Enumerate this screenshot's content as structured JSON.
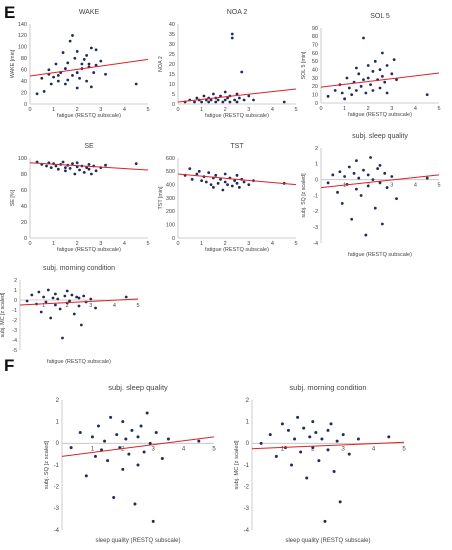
{
  "panel_labels": {
    "e": "E",
    "f": "F"
  },
  "colors": {
    "point": "#1f2d5c",
    "trend": "#e02020",
    "axis": "#bfbfbf",
    "text": "#555555"
  },
  "chart_data": [
    {
      "type": "scatter",
      "title": "WAKE",
      "xlabel": "fatigue (RESTQ subscale)",
      "ylabel": "WAKE [min]",
      "xlim": [
        0,
        5
      ],
      "ylim": [
        0,
        140
      ],
      "xticks": [
        "0",
        "1",
        "2",
        "3",
        "4",
        "5"
      ],
      "yticks": [
        "0",
        "20",
        "40",
        "60",
        "80",
        "100",
        "120",
        "140"
      ],
      "points": [
        [
          0.3,
          18
        ],
        [
          0.5,
          45
        ],
        [
          0.6,
          22
        ],
        [
          0.8,
          52
        ],
        [
          0.8,
          60
        ],
        [
          0.9,
          35
        ],
        [
          1.0,
          47
        ],
        [
          1.1,
          70
        ],
        [
          1.2,
          40
        ],
        [
          1.2,
          50
        ],
        [
          1.3,
          55
        ],
        [
          1.4,
          90
        ],
        [
          1.5,
          35
        ],
        [
          1.5,
          62
        ],
        [
          1.6,
          42
        ],
        [
          1.6,
          72
        ],
        [
          1.7,
          110
        ],
        [
          1.8,
          50
        ],
        [
          1.8,
          120
        ],
        [
          1.9,
          80
        ],
        [
          2.0,
          28
        ],
        [
          2.0,
          55
        ],
        [
          2.0,
          92
        ],
        [
          2.1,
          45
        ],
        [
          2.2,
          62
        ],
        [
          2.2,
          70
        ],
        [
          2.3,
          78
        ],
        [
          2.4,
          40
        ],
        [
          2.4,
          85
        ],
        [
          2.5,
          70
        ],
        [
          2.5,
          65
        ],
        [
          2.6,
          30
        ],
        [
          2.6,
          98
        ],
        [
          2.7,
          55
        ],
        [
          2.8,
          68
        ],
        [
          2.8,
          95
        ],
        [
          3.0,
          75
        ],
        [
          3.2,
          52
        ],
        [
          4.5,
          35
        ]
      ],
      "trend": [
        [
          0,
          49
        ],
        [
          5,
          78
        ]
      ]
    },
    {
      "type": "scatter",
      "title": "NOA 2",
      "xlabel": "fatigue (RESTQ subscale)",
      "ylabel": "NOA 2",
      "xlim": [
        0,
        5
      ],
      "ylim": [
        0,
        40
      ],
      "xticks": [
        "0",
        "1",
        "2",
        "3",
        "4",
        "5"
      ],
      "yticks": [
        "0",
        "5",
        "10",
        "15",
        "20",
        "25",
        "30",
        "35",
        "40"
      ],
      "points": [
        [
          0.3,
          1
        ],
        [
          0.5,
          2
        ],
        [
          0.7,
          1
        ],
        [
          0.8,
          3
        ],
        [
          0.9,
          2
        ],
        [
          1.0,
          1
        ],
        [
          1.1,
          4
        ],
        [
          1.2,
          2
        ],
        [
          1.3,
          1
        ],
        [
          1.3,
          3
        ],
        [
          1.4,
          2
        ],
        [
          1.5,
          5
        ],
        [
          1.6,
          1
        ],
        [
          1.6,
          3
        ],
        [
          1.7,
          2
        ],
        [
          1.8,
          4
        ],
        [
          1.9,
          1
        ],
        [
          2.0,
          2
        ],
        [
          2.0,
          6
        ],
        [
          2.1,
          3
        ],
        [
          2.2,
          1
        ],
        [
          2.2,
          4
        ],
        [
          2.3,
          33
        ],
        [
          2.3,
          35
        ],
        [
          2.4,
          2
        ],
        [
          2.5,
          5
        ],
        [
          2.5,
          1
        ],
        [
          2.6,
          3
        ],
        [
          2.7,
          16
        ],
        [
          2.8,
          2
        ],
        [
          3.0,
          4
        ],
        [
          3.2,
          2
        ],
        [
          4.5,
          1
        ]
      ],
      "trend": [
        [
          0,
          1
        ],
        [
          5,
          7.5
        ]
      ]
    },
    {
      "type": "scatter",
      "title": "SOL 5",
      "xlabel": "fatigue (RESTQ subscale)",
      "ylabel": "SOL 5 [min]",
      "xlim": [
        0,
        5
      ],
      "ylim": [
        0,
        90
      ],
      "xticks": [
        "0",
        "1",
        "2",
        "3",
        "4",
        "5"
      ],
      "yticks": [
        "0",
        "10",
        "20",
        "30",
        "40",
        "50",
        "60",
        "70",
        "80",
        "90"
      ],
      "points": [
        [
          0.3,
          8
        ],
        [
          0.6,
          15
        ],
        [
          0.8,
          22
        ],
        [
          0.9,
          12
        ],
        [
          1.0,
          5
        ],
        [
          1.1,
          30
        ],
        [
          1.2,
          18
        ],
        [
          1.3,
          10
        ],
        [
          1.4,
          25
        ],
        [
          1.5,
          42
        ],
        [
          1.5,
          15
        ],
        [
          1.6,
          35
        ],
        [
          1.7,
          20
        ],
        [
          1.8,
          78
        ],
        [
          1.8,
          28
        ],
        [
          1.9,
          12
        ],
        [
          2.0,
          45
        ],
        [
          2.0,
          30
        ],
        [
          2.1,
          22
        ],
        [
          2.2,
          38
        ],
        [
          2.2,
          15
        ],
        [
          2.3,
          50
        ],
        [
          2.4,
          28
        ],
        [
          2.5,
          40
        ],
        [
          2.5,
          18
        ],
        [
          2.6,
          60
        ],
        [
          2.6,
          32
        ],
        [
          2.7,
          25
        ],
        [
          2.8,
          45
        ],
        [
          2.8,
          12
        ],
        [
          3.0,
          35
        ],
        [
          3.1,
          52
        ],
        [
          3.2,
          28
        ],
        [
          4.5,
          10
        ]
      ],
      "trend": [
        [
          0,
          19
        ],
        [
          5,
          36
        ]
      ]
    },
    {
      "type": "scatter",
      "title": "SE",
      "xlabel": "fatigue (RESTQ subscale)",
      "ylabel": "SE [%]",
      "xlim": [
        0,
        5
      ],
      "ylim": [
        0,
        100
      ],
      "xticks": [
        "0",
        "1",
        "2",
        "3",
        "4",
        "5"
      ],
      "yticks": [
        "0",
        "20",
        "40",
        "60",
        "80",
        "100"
      ],
      "points": [
        [
          0.3,
          95
        ],
        [
          0.5,
          92
        ],
        [
          0.7,
          90
        ],
        [
          0.8,
          94
        ],
        [
          0.9,
          88
        ],
        [
          1.0,
          93
        ],
        [
          1.1,
          90
        ],
        [
          1.2,
          86
        ],
        [
          1.3,
          92
        ],
        [
          1.4,
          95
        ],
        [
          1.5,
          88
        ],
        [
          1.5,
          84
        ],
        [
          1.6,
          91
        ],
        [
          1.7,
          87
        ],
        [
          1.8,
          93
        ],
        [
          1.9,
          80
        ],
        [
          2.0,
          89
        ],
        [
          2.0,
          94
        ],
        [
          2.1,
          85
        ],
        [
          2.2,
          90
        ],
        [
          2.3,
          82
        ],
        [
          2.4,
          88
        ],
        [
          2.5,
          92
        ],
        [
          2.5,
          86
        ],
        [
          2.6,
          80
        ],
        [
          2.7,
          90
        ],
        [
          2.8,
          84
        ],
        [
          3.0,
          88
        ],
        [
          3.2,
          91
        ],
        [
          4.5,
          93
        ]
      ],
      "trend": [
        [
          0,
          94
        ],
        [
          5,
          85
        ]
      ]
    },
    {
      "type": "scatter",
      "title": "TST",
      "xlabel": "fatigue (RESTQ subscale)",
      "ylabel": "TST [min]",
      "xlim": [
        0,
        5
      ],
      "ylim": [
        0,
        600
      ],
      "xticks": [
        "0",
        "1",
        "2",
        "3",
        "4",
        "5"
      ],
      "yticks": [
        "0",
        "100",
        "200",
        "300",
        "400",
        "500",
        "600"
      ],
      "points": [
        [
          0.3,
          470
        ],
        [
          0.5,
          520
        ],
        [
          0.6,
          440
        ],
        [
          0.8,
          480
        ],
        [
          0.9,
          500
        ],
        [
          1.0,
          430
        ],
        [
          1.1,
          460
        ],
        [
          1.2,
          420
        ],
        [
          1.3,
          490
        ],
        [
          1.4,
          400
        ],
        [
          1.5,
          450
        ],
        [
          1.5,
          380
        ],
        [
          1.6,
          470
        ],
        [
          1.7,
          410
        ],
        [
          1.8,
          440
        ],
        [
          1.9,
          360
        ],
        [
          2.0,
          480
        ],
        [
          2.0,
          420
        ],
        [
          2.1,
          400
        ],
        [
          2.2,
          450
        ],
        [
          2.3,
          390
        ],
        [
          2.4,
          430
        ],
        [
          2.5,
          470
        ],
        [
          2.5,
          410
        ],
        [
          2.6,
          380
        ],
        [
          2.7,
          440
        ],
        [
          2.8,
          420
        ],
        [
          3.0,
          400
        ],
        [
          3.2,
          430
        ],
        [
          4.5,
          410
        ]
      ],
      "trend": [
        [
          0,
          480
        ],
        [
          5,
          400
        ]
      ]
    },
    {
      "type": "scatter",
      "title": "subj. sleep quality",
      "xlabel": "fatigue (RESTQ subscale)",
      "ylabel": "subj. SQ [z scaled]",
      "xlim": [
        0,
        5
      ],
      "ylim": [
        -4,
        2
      ],
      "xticks": [
        "1",
        "2",
        "3",
        "4",
        "5"
      ],
      "yticks": [
        "-4",
        "-3",
        "-2",
        "-1",
        "0",
        "1",
        "2"
      ],
      "points": [
        [
          0.3,
          -0.2
        ],
        [
          0.5,
          0.3
        ],
        [
          0.7,
          -0.8
        ],
        [
          0.8,
          0.5
        ],
        [
          0.9,
          -1.5
        ],
        [
          1.0,
          0.2
        ],
        [
          1.1,
          -0.3
        ],
        [
          1.2,
          0.8
        ],
        [
          1.3,
          -2.5
        ],
        [
          1.4,
          0.4
        ],
        [
          1.5,
          -0.6
        ],
        [
          1.5,
          1.2
        ],
        [
          1.6,
          0.1
        ],
        [
          1.7,
          -1.0
        ],
        [
          1.8,
          0.6
        ],
        [
          1.9,
          -3.5
        ],
        [
          2.0,
          0.3
        ],
        [
          2.0,
          -0.4
        ],
        [
          2.1,
          1.4
        ],
        [
          2.2,
          0.0
        ],
        [
          2.3,
          -1.8
        ],
        [
          2.4,
          0.7
        ],
        [
          2.5,
          -0.2
        ],
        [
          2.5,
          0.9
        ],
        [
          2.6,
          -2.8
        ],
        [
          2.7,
          0.4
        ],
        [
          2.8,
          -0.5
        ],
        [
          3.0,
          0.2
        ],
        [
          3.2,
          -1.2
        ],
        [
          4.5,
          0.1
        ]
      ],
      "trend": [
        [
          0,
          -0.5
        ],
        [
          5,
          0.3
        ]
      ]
    },
    {
      "type": "scatter",
      "title": "subj. morning condition",
      "xlabel": "fatigue (RESTQ subscale)",
      "ylabel": "subj. MC [z scaled]",
      "xlim": [
        0,
        5
      ],
      "ylim": [
        -5,
        2
      ],
      "xticks": [
        "1",
        "2",
        "3",
        "4",
        "5"
      ],
      "yticks": [
        "-5",
        "-4",
        "-3",
        "-2",
        "-1",
        "0",
        "1",
        "2"
      ],
      "points": [
        [
          0.3,
          -0.1
        ],
        [
          0.5,
          0.5
        ],
        [
          0.7,
          -0.4
        ],
        [
          0.8,
          0.8
        ],
        [
          0.9,
          -1.2
        ],
        [
          1.0,
          0.3
        ],
        [
          1.1,
          -0.2
        ],
        [
          1.2,
          1.0
        ],
        [
          1.3,
          -1.8
        ],
        [
          1.4,
          0.2
        ],
        [
          1.5,
          -0.5
        ],
        [
          1.5,
          0.6
        ],
        [
          1.6,
          0.1
        ],
        [
          1.7,
          -0.9
        ],
        [
          1.8,
          -3.8
        ],
        [
          1.9,
          0.4
        ],
        [
          2.0,
          -0.3
        ],
        [
          2.0,
          0.9
        ],
        [
          2.1,
          -0.1
        ],
        [
          2.2,
          0.5
        ],
        [
          2.3,
          -1.4
        ],
        [
          2.4,
          0.3
        ],
        [
          2.5,
          -0.6
        ],
        [
          2.5,
          0.2
        ],
        [
          2.6,
          -2.5
        ],
        [
          2.7,
          0.4
        ],
        [
          2.8,
          -0.2
        ],
        [
          3.0,
          0.1
        ],
        [
          3.2,
          -0.8
        ],
        [
          4.5,
          0.3
        ]
      ],
      "trend": [
        [
          0,
          -0.5
        ],
        [
          5,
          0.1
        ]
      ]
    },
    {
      "type": "scatter",
      "title": "subj. sleep quality",
      "xlabel": "sleep quality (RESTQ subscale)",
      "ylabel": "subj. SQ [z scaled]",
      "xlim": [
        0,
        5
      ],
      "ylim": [
        -4,
        2
      ],
      "xticks": [
        "1",
        "2",
        "3",
        "4",
        "5"
      ],
      "yticks": [
        "-4",
        "-3",
        "-2",
        "-1",
        "0",
        "1",
        "2"
      ],
      "points": [
        [
          0.3,
          -0.2
        ],
        [
          0.6,
          0.5
        ],
        [
          0.8,
          -1.5
        ],
        [
          1.0,
          0.3
        ],
        [
          1.1,
          -0.6
        ],
        [
          1.2,
          0.8
        ],
        [
          1.3,
          -0.3
        ],
        [
          1.4,
          0.1
        ],
        [
          1.5,
          -0.8
        ],
        [
          1.6,
          1.2
        ],
        [
          1.7,
          -2.5
        ],
        [
          1.8,
          0.4
        ],
        [
          1.9,
          -0.2
        ],
        [
          2.0,
          1.0
        ],
        [
          2.0,
          -1.2
        ],
        [
          2.1,
          0.2
        ],
        [
          2.2,
          -0.5
        ],
        [
          2.3,
          0.6
        ],
        [
          2.4,
          -2.8
        ],
        [
          2.5,
          0.3
        ],
        [
          2.5,
          -1.0
        ],
        [
          2.6,
          0.8
        ],
        [
          2.7,
          -0.4
        ],
        [
          2.8,
          1.4
        ],
        [
          2.9,
          0.0
        ],
        [
          3.0,
          -3.6
        ],
        [
          3.1,
          0.5
        ],
        [
          3.3,
          -0.7
        ],
        [
          3.5,
          0.2
        ],
        [
          4.5,
          0.1
        ]
      ],
      "trend": [
        [
          0,
          -0.6
        ],
        [
          5,
          0.3
        ]
      ]
    },
    {
      "type": "scatter",
      "title": "subj. morning condition",
      "xlabel": "sleep quality (RESTQ subscale)",
      "ylabel": "subj. MC [z scaled]",
      "xlim": [
        0,
        5
      ],
      "ylim": [
        -4,
        2
      ],
      "xticks": [
        "1",
        "2",
        "3",
        "4",
        "5"
      ],
      "yticks": [
        "-4",
        "-3",
        "-2",
        "-1",
        "0",
        "1",
        "2"
      ],
      "points": [
        [
          0.3,
          0.0
        ],
        [
          0.6,
          0.4
        ],
        [
          0.8,
          -0.6
        ],
        [
          1.0,
          0.9
        ],
        [
          1.1,
          -0.2
        ],
        [
          1.2,
          0.6
        ],
        [
          1.3,
          -1.0
        ],
        [
          1.4,
          0.2
        ],
        [
          1.5,
          1.2
        ],
        [
          1.6,
          -0.4
        ],
        [
          1.7,
          0.7
        ],
        [
          1.8,
          -1.6
        ],
        [
          1.9,
          0.3
        ],
        [
          2.0,
          -0.2
        ],
        [
          2.0,
          1.0
        ],
        [
          2.1,
          0.5
        ],
        [
          2.2,
          -0.8
        ],
        [
          2.3,
          0.2
        ],
        [
          2.4,
          -3.6
        ],
        [
          2.5,
          0.6
        ],
        [
          2.5,
          -0.3
        ],
        [
          2.6,
          0.9
        ],
        [
          2.7,
          -1.3
        ],
        [
          2.8,
          0.1
        ],
        [
          2.9,
          -2.7
        ],
        [
          3.0,
          0.4
        ],
        [
          3.2,
          -0.5
        ],
        [
          3.5,
          0.2
        ],
        [
          4.5,
          0.3
        ]
      ],
      "trend": [
        [
          0,
          -0.25
        ],
        [
          5,
          0.05
        ]
      ]
    }
  ]
}
